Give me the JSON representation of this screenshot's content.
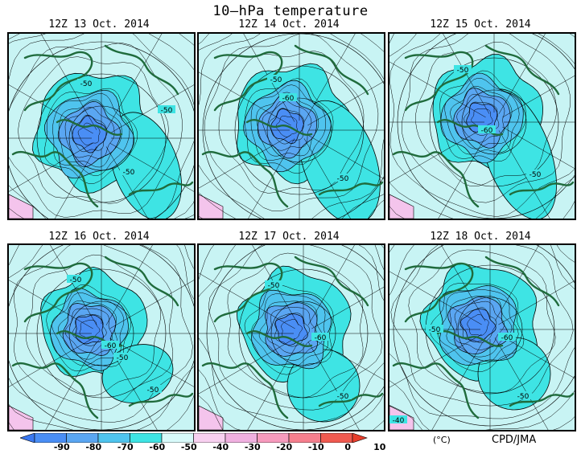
{
  "title": "10–hPa temperature",
  "panels": [
    {
      "date": "12Z 13 Oct. 2014",
      "labels": [
        "-50",
        "-50",
        "-50"
      ]
    },
    {
      "date": "12Z 14 Oct. 2014",
      "labels": [
        "-50",
        "-60",
        "-50"
      ]
    },
    {
      "date": "12Z 15 Oct. 2014",
      "labels": [
        "-50",
        "-60",
        "-50"
      ]
    },
    {
      "date": "12Z 16 Oct. 2014",
      "labels": [
        "-50",
        "-60",
        "-50",
        "-50"
      ]
    },
    {
      "date": "12Z 17 Oct. 2014",
      "labels": [
        "-50",
        "-60",
        "-50"
      ]
    },
    {
      "date": "12Z 18 Oct. 2014",
      "labels": [
        "-50",
        "-60",
        "-50",
        "-40"
      ]
    }
  ],
  "colorbar": {
    "ticks": [
      "-90",
      "-80",
      "-70",
      "-60",
      "-50",
      "-40",
      "-30",
      "-20",
      "-10",
      "0",
      "10"
    ],
    "colors": [
      "#3a78f0",
      "#4a8ef5",
      "#5aa6f2",
      "#4fc4ee",
      "#3ee4e4",
      "#d8fafa",
      "#f8d0f0",
      "#f0b0e0",
      "#f79bbd",
      "#f67f8e",
      "#f05a50",
      "#e83e2c"
    ],
    "unit": "(°C)"
  },
  "credit": "CPD/JMA",
  "colors": {
    "land_outline": "#1f6b3c",
    "contour": "#000000",
    "ocean": "#c8f4f4"
  }
}
